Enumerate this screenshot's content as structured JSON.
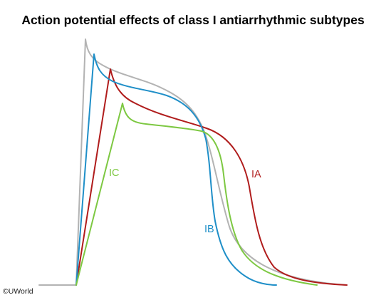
{
  "title": "Action potential effects of class I antiarrhythmic subtypes",
  "credit": "©UWorld",
  "colors": {
    "reference": "#b3b3b3",
    "IA": "#b01c1c",
    "IB": "#1f8fc8",
    "IC": "#7dc842"
  },
  "curves": [
    {
      "key": "reference",
      "label": ""
    },
    {
      "key": "IA",
      "label": "IA"
    },
    {
      "key": "IB",
      "label": "IB"
    },
    {
      "key": "IC",
      "label": "IC"
    }
  ]
}
